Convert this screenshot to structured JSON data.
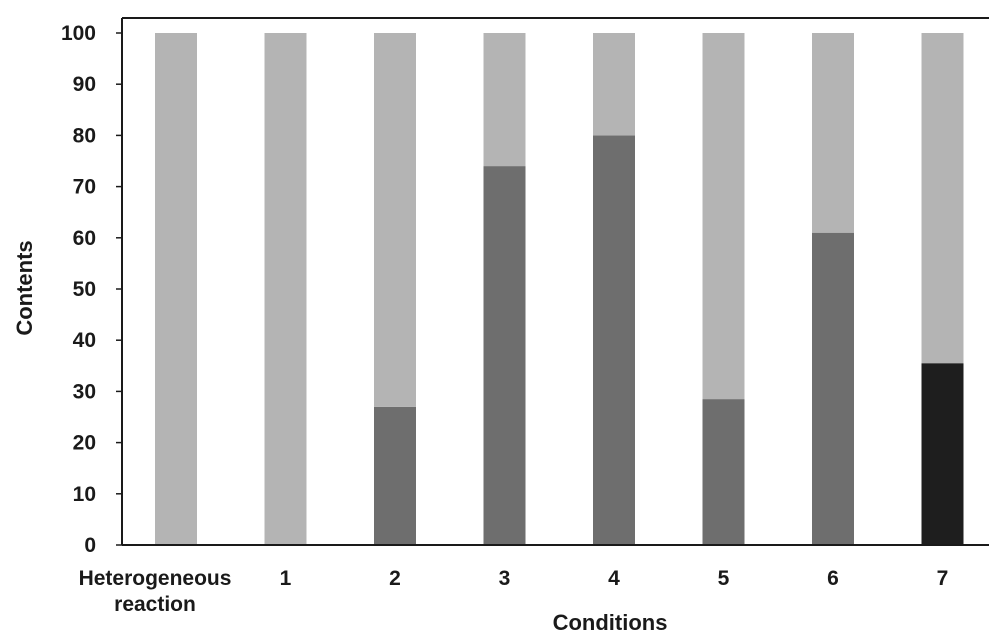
{
  "chart_data": {
    "type": "bar",
    "stacked": true,
    "title": "",
    "xlabel": "Conditions",
    "ylabel": "Contents",
    "ylim": [
      0,
      100
    ],
    "yticks": [
      0,
      10,
      20,
      30,
      40,
      50,
      60,
      70,
      80,
      90,
      100
    ],
    "categories": [
      [
        "Heterogeneous",
        "reaction"
      ],
      [
        "1"
      ],
      [
        "2"
      ],
      [
        "3"
      ],
      [
        "4"
      ],
      [
        "5"
      ],
      [
        "6"
      ],
      [
        "7"
      ]
    ],
    "series": [
      {
        "values": [
          0,
          0,
          27,
          74,
          80,
          28.5,
          61,
          35.5
        ],
        "colors": [
          "#6e6e6e",
          "#6e6e6e",
          "#6e6e6e",
          "#6e6e6e",
          "#6e6e6e",
          "#6e6e6e",
          "#6e6e6e",
          "#1e1e1e"
        ]
      },
      {
        "values": [
          100,
          100,
          73,
          26,
          20,
          71.5,
          39,
          64.5
        ],
        "colors": [
          "#b4b4b4",
          "#b4b4b4",
          "#b4b4b4",
          "#b4b4b4",
          "#b4b4b4",
          "#b4b4b4",
          "#b4b4b4",
          "#b4b4b4"
        ]
      }
    ],
    "grid": false,
    "legend": "none"
  }
}
